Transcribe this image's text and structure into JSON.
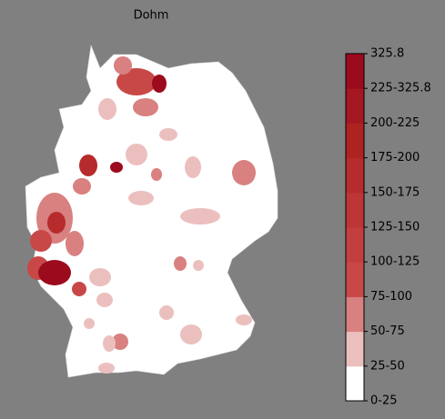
{
  "title": "Dohm",
  "colorbar": {
    "labels": [
      "0-25",
      "25-50",
      "50-75",
      "75-100",
      "100-125",
      "125-150",
      "150-175",
      "175-200",
      "200-225",
      "225-325.8",
      "325.8"
    ],
    "colors": [
      "#ffffff",
      "#ecbfbf",
      "#d98080",
      "#c84848",
      "#c33f3f",
      "#bd3535",
      "#b62b2b",
      "#ae2222",
      "#a51822",
      "#9c0a1e"
    ]
  }
}
